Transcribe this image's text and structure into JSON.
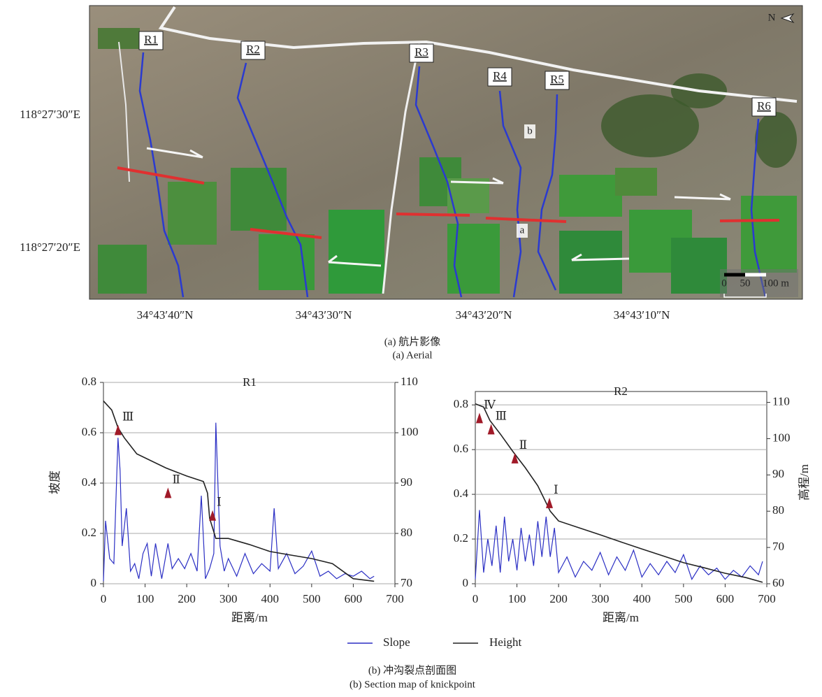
{
  "aerial": {
    "reach_labels": [
      "R1",
      "R2",
      "R3",
      "R4",
      "R5",
      "R6"
    ],
    "point_labels": [
      "a",
      "b"
    ],
    "north": "N",
    "scale_labels": [
      "0",
      "50",
      "100 m"
    ],
    "lat_labels": [
      "118°27′30″E",
      "118°27′20″E"
    ],
    "lon_labels": [
      "34°43′40″N",
      "34°43′30″N",
      "34°43′20″N",
      "34°43′10″N"
    ]
  },
  "caption_a": [
    "(a) 航片影像",
    "(a) Aerial"
  ],
  "chart_data": [
    {
      "type": "line",
      "title": "R1",
      "x_label": "距离/m",
      "y_label": "坡度",
      "xlim": [
        0,
        700
      ],
      "xticks": [
        0,
        100,
        200,
        300,
        400,
        500,
        600,
        700
      ],
      "ylim": [
        0,
        0.8
      ],
      "yticks": [
        0,
        0.2,
        0.4,
        0.6,
        0.8
      ],
      "y2lim": [
        70,
        110
      ],
      "y2ticks": [
        70,
        80,
        90,
        100,
        110
      ],
      "grid": true,
      "series": [
        {
          "name": "Slope",
          "color": "#2b2fc4",
          "x": [
            0,
            5,
            15,
            25,
            35,
            40,
            45,
            55,
            65,
            75,
            85,
            95,
            105,
            115,
            125,
            140,
            155,
            165,
            180,
            195,
            210,
            225,
            235,
            245,
            255,
            265,
            270,
            280,
            290,
            300,
            320,
            340,
            360,
            380,
            400,
            410,
            420,
            440,
            460,
            480,
            500,
            520,
            540,
            560,
            580,
            600,
            620,
            640,
            650
          ],
          "values": [
            0.01,
            0.25,
            0.1,
            0.08,
            0.58,
            0.45,
            0.15,
            0.3,
            0.05,
            0.08,
            0.02,
            0.12,
            0.16,
            0.03,
            0.16,
            0.02,
            0.16,
            0.06,
            0.1,
            0.06,
            0.12,
            0.05,
            0.35,
            0.02,
            0.06,
            0.12,
            0.64,
            0.15,
            0.05,
            0.1,
            0.03,
            0.12,
            0.04,
            0.08,
            0.05,
            0.3,
            0.06,
            0.12,
            0.04,
            0.07,
            0.13,
            0.03,
            0.05,
            0.02,
            0.04,
            0.03,
            0.05,
            0.02,
            0.03
          ]
        },
        {
          "name": "Height",
          "color": "#222222",
          "axis": "y2",
          "x": [
            0,
            20,
            35,
            50,
            80,
            150,
            200,
            240,
            250,
            255,
            270,
            300,
            350,
            400,
            450,
            500,
            550,
            600,
            650
          ],
          "values": [
            106.3,
            104.5,
            101,
            99,
            95.8,
            93,
            91.4,
            90.3,
            88,
            83,
            79,
            79,
            77.8,
            76.4,
            75.7,
            75,
            74,
            71,
            70.5
          ]
        }
      ],
      "knickpoints": [
        {
          "label": "Ⅲ",
          "x": 35,
          "y": 0.61
        },
        {
          "label": "Ⅱ",
          "x": 155,
          "y": 0.36
        },
        {
          "label": "Ⅰ",
          "x": 262,
          "y": 0.27
        }
      ]
    },
    {
      "type": "line",
      "title": "R2",
      "x_label": "距离/m",
      "y2_label": "高程/m",
      "xlim": [
        0,
        700
      ],
      "xticks": [
        0,
        100,
        200,
        300,
        400,
        500,
        600,
        700
      ],
      "ylim": [
        0,
        0.86
      ],
      "yticks": [
        0,
        0.2,
        0.4,
        0.6,
        0.8
      ],
      "y2lim": [
        60,
        113
      ],
      "y2ticks": [
        60,
        70,
        80,
        90,
        100,
        110
      ],
      "grid": true,
      "series": [
        {
          "name": "Slope",
          "color": "#2b2fc4",
          "x": [
            0,
            10,
            20,
            30,
            40,
            50,
            60,
            70,
            80,
            90,
            100,
            110,
            120,
            130,
            140,
            150,
            160,
            170,
            180,
            190,
            200,
            220,
            240,
            260,
            280,
            300,
            320,
            340,
            360,
            380,
            400,
            420,
            440,
            460,
            480,
            500,
            520,
            540,
            560,
            580,
            600,
            620,
            640,
            660,
            680,
            690
          ],
          "values": [
            0.02,
            0.33,
            0.05,
            0.2,
            0.08,
            0.26,
            0.05,
            0.3,
            0.1,
            0.2,
            0.06,
            0.25,
            0.1,
            0.22,
            0.08,
            0.28,
            0.12,
            0.3,
            0.12,
            0.25,
            0.05,
            0.12,
            0.03,
            0.1,
            0.06,
            0.14,
            0.04,
            0.12,
            0.06,
            0.15,
            0.03,
            0.09,
            0.04,
            0.1,
            0.05,
            0.13,
            0.02,
            0.08,
            0.04,
            0.07,
            0.02,
            0.06,
            0.03,
            0.08,
            0.04,
            0.1
          ]
        },
        {
          "name": "Height",
          "color": "#222222",
          "axis": "y2",
          "x": [
            0,
            20,
            35,
            60,
            90,
            120,
            150,
            180,
            200,
            250,
            300,
            350,
            400,
            450,
            500,
            550,
            600,
            650,
            690
          ],
          "values": [
            109.6,
            108.7,
            105,
            101.3,
            96.5,
            92,
            87,
            80,
            77.3,
            75.4,
            73.5,
            71.5,
            69.6,
            67.7,
            65.8,
            64.4,
            62.9,
            61.7,
            60.4
          ]
        }
      ],
      "knickpoints": [
        {
          "label": "Ⅳ",
          "x": 10,
          "y": 0.74
        },
        {
          "label": "Ⅲ",
          "x": 38,
          "y": 0.69
        },
        {
          "label": "Ⅱ",
          "x": 95,
          "y": 0.56
        },
        {
          "label": "Ⅰ",
          "x": 178,
          "y": 0.36
        }
      ]
    }
  ],
  "caption_b": [
    "(b) 冲沟裂点剖面图",
    "(b) Section map of knickpoint"
  ]
}
